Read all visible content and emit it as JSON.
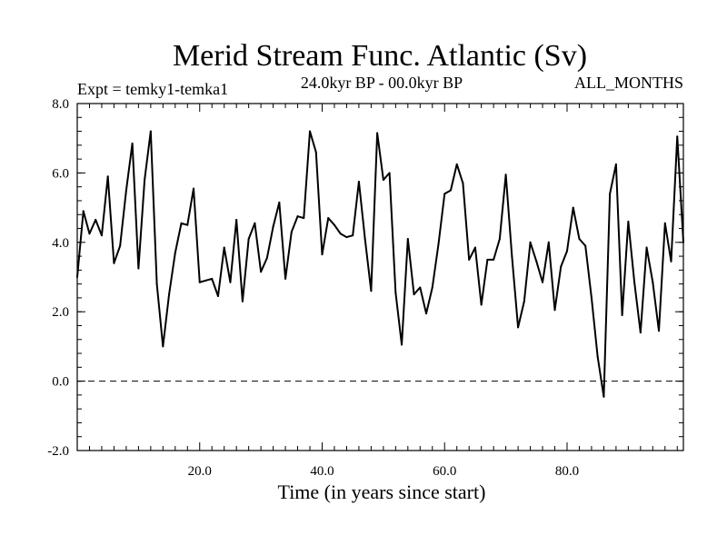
{
  "chart_data": {
    "type": "line",
    "title": "Merid Stream Func. Atlantic (Sv)",
    "subtitle_left": "Expt = temky1-temka1",
    "subtitle_center": "24.0kyr BP - 00.0kyr BP",
    "subtitle_right": "ALL_MONTHS",
    "xlabel": "Time (in years since start)",
    "ylabel": "",
    "xlim": [
      0,
      99
    ],
    "ylim": [
      -2.0,
      8.0
    ],
    "x_ticks": [
      20.0,
      40.0,
      60.0,
      80.0
    ],
    "x_tick_labels": [
      "20.0",
      "40.0",
      "60.0",
      "80.0"
    ],
    "y_ticks": [
      -2.0,
      0.0,
      2.0,
      4.0,
      6.0,
      8.0
    ],
    "y_tick_labels": [
      "-2.0",
      "0.0",
      "2.0",
      "4.0",
      "6.0",
      "8.0"
    ],
    "reference_line": {
      "y": 0.0,
      "style": "dashed"
    },
    "series": [
      {
        "name": "Merid Stream Func. Atlantic",
        "x": [
          0,
          1,
          2,
          3,
          4,
          5,
          6,
          7,
          8,
          9,
          10,
          11,
          12,
          13,
          14,
          15,
          16,
          17,
          18,
          19,
          20,
          21,
          22,
          23,
          24,
          25,
          26,
          27,
          28,
          29,
          30,
          31,
          32,
          33,
          34,
          35,
          36,
          37,
          38,
          39,
          40,
          41,
          42,
          43,
          44,
          45,
          46,
          47,
          48,
          49,
          50,
          51,
          52,
          53,
          54,
          55,
          56,
          57,
          58,
          59,
          60,
          61,
          62,
          63,
          64,
          65,
          66,
          67,
          68,
          69,
          70,
          71,
          72,
          73,
          74,
          75,
          76,
          77,
          78,
          79,
          80,
          81,
          82,
          83,
          84,
          85,
          86,
          87,
          88,
          89,
          90,
          91,
          92,
          93,
          94,
          95,
          96,
          97,
          98,
          99
        ],
        "values": [
          3.0,
          4.9,
          4.25,
          4.65,
          4.2,
          5.9,
          3.4,
          3.9,
          5.5,
          6.85,
          3.25,
          5.8,
          7.2,
          2.8,
          1.0,
          2.5,
          3.7,
          4.55,
          4.5,
          5.55,
          2.85,
          2.9,
          2.95,
          2.45,
          3.85,
          2.85,
          4.65,
          2.3,
          4.1,
          4.55,
          3.15,
          3.55,
          4.45,
          5.15,
          2.95,
          4.3,
          4.75,
          4.7,
          7.2,
          6.6,
          3.65,
          4.7,
          4.5,
          4.25,
          4.15,
          4.2,
          5.75,
          4.1,
          2.6,
          7.15,
          5.8,
          6.0,
          2.55,
          1.05,
          4.1,
          2.5,
          2.7,
          1.95,
          2.7,
          3.95,
          5.4,
          5.5,
          6.25,
          5.7,
          3.5,
          3.85,
          2.2,
          3.5,
          3.5,
          4.1,
          5.95,
          3.6,
          1.55,
          2.3,
          4.0,
          3.45,
          2.85,
          4.0,
          2.05,
          3.3,
          3.75,
          5.0,
          4.1,
          3.9,
          2.4,
          0.7,
          -0.45,
          5.4,
          6.25,
          1.9,
          4.6,
          2.85,
          1.4,
          3.85,
          2.85,
          1.45,
          4.55,
          3.45,
          7.05,
          4.0
        ]
      }
    ]
  }
}
